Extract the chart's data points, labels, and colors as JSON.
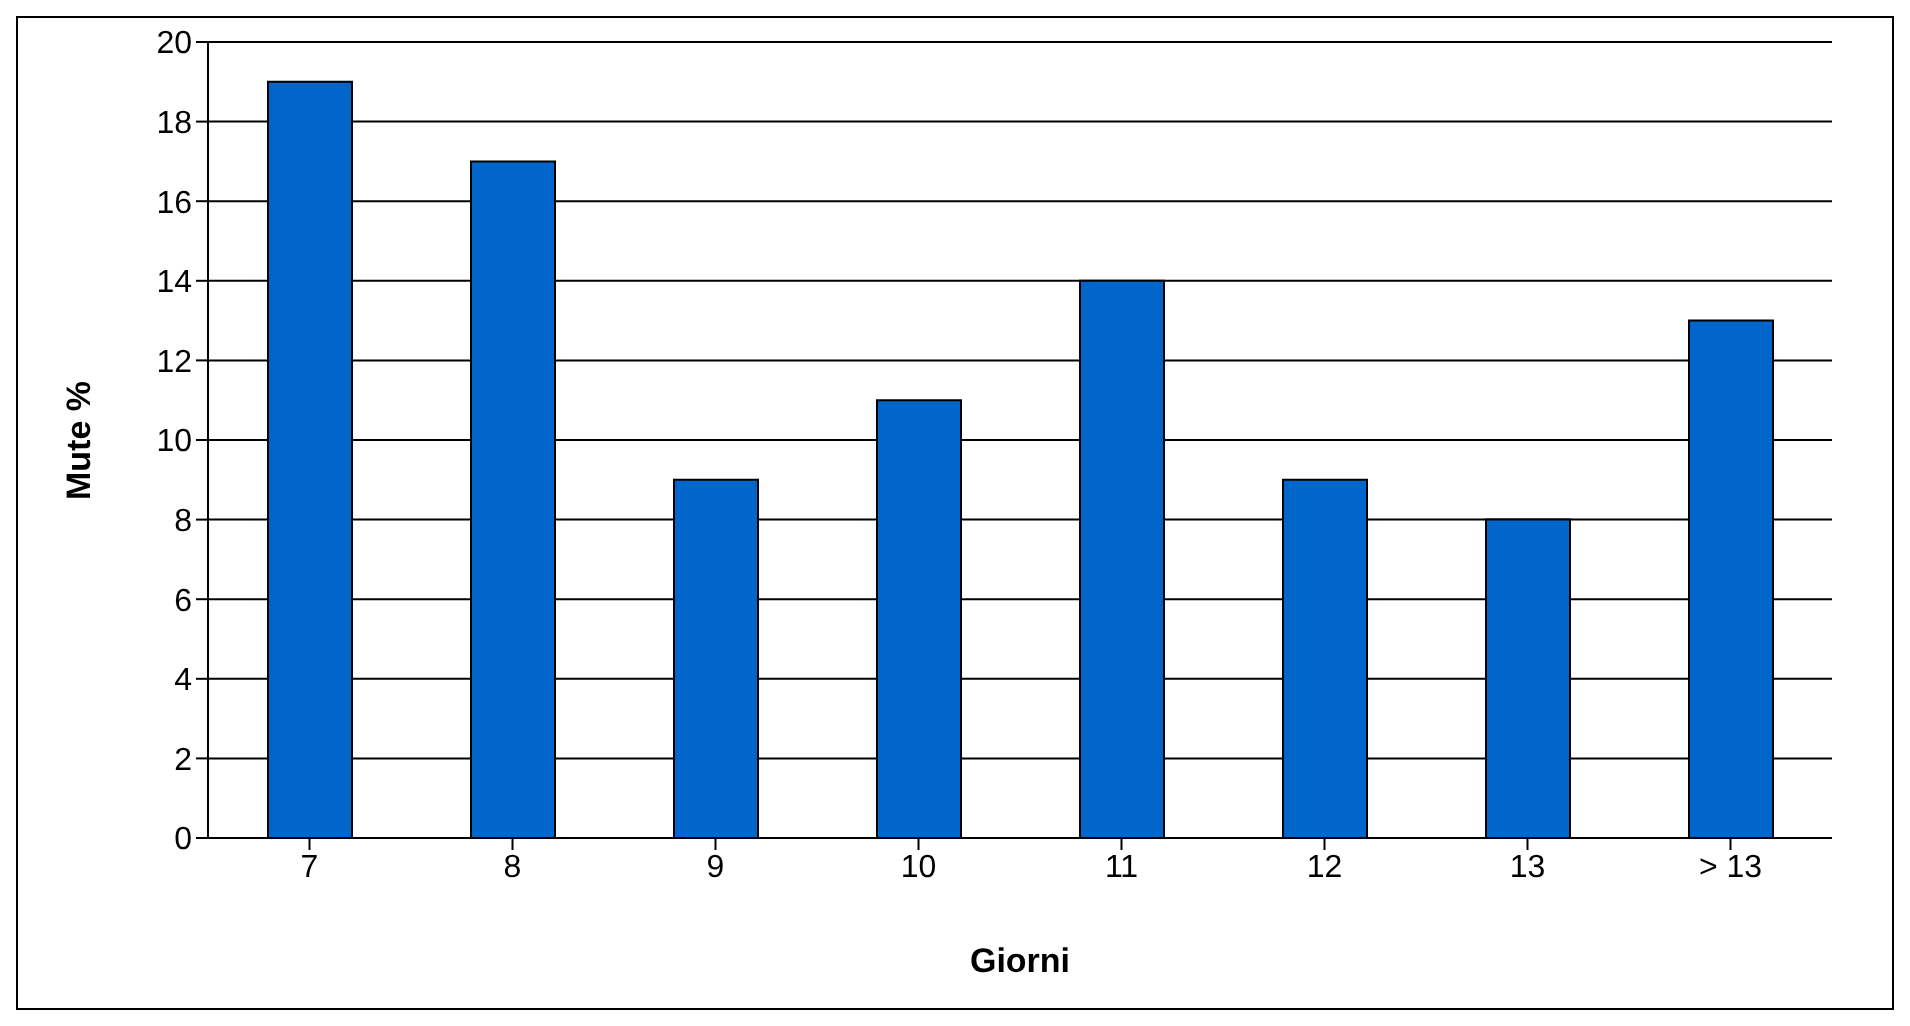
{
  "chart_data": {
    "type": "bar",
    "xlabel": "Giorni",
    "ylabel": "Mute %",
    "categories": [
      "7",
      "8",
      "9",
      "10",
      "11",
      "12",
      "13",
      "> 13"
    ],
    "values": [
      19,
      17,
      9,
      11,
      14,
      9,
      8,
      13
    ],
    "color": "#0066cc",
    "ylim": [
      0,
      20
    ],
    "yticks": [
      0,
      2,
      4,
      6,
      8,
      10,
      12,
      14,
      16,
      18,
      20
    ],
    "grid": "y"
  }
}
